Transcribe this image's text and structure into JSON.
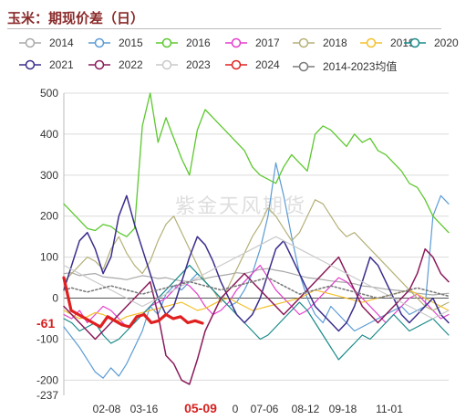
{
  "title": "玉米：期现价差（日）",
  "watermark": "紫金天风期货",
  "chart_data": {
    "type": "line",
    "ylim": [
      -237,
      500
    ],
    "y_ticks": [
      500,
      400,
      300,
      200,
      100,
      0,
      -100,
      -200,
      -237
    ],
    "x_tick_labels": [
      {
        "label": "02-08",
        "emph": false
      },
      {
        "label": "03-16",
        "emph": false
      },
      {
        "label": "05-09",
        "emph": true
      },
      {
        "label": "0",
        "emph": false
      },
      {
        "label": "07-06",
        "emph": false
      },
      {
        "label": "08-12",
        "emph": false
      },
      {
        "label": "09-18",
        "emph": false
      },
      {
        "label": "11-01",
        "emph": false
      }
    ],
    "current_value_label": "-61",
    "grid": true,
    "legend_position": "top",
    "series": [
      {
        "name": "2014",
        "color": "#a8a8a8",
        "width": 1.2,
        "dash": "",
        "values": [
          60,
          62,
          55,
          58,
          60,
          52,
          50,
          48,
          45,
          50,
          55,
          52,
          48,
          50,
          45,
          42,
          40,
          45,
          48,
          52,
          55,
          58,
          62,
          60,
          65,
          70,
          72,
          68,
          65,
          60,
          55,
          50,
          48,
          45,
          42,
          40,
          38,
          35,
          30,
          28,
          25,
          22,
          20,
          18,
          15,
          12,
          10,
          8,
          10,
          12
        ]
      },
      {
        "name": "2015",
        "color": "#5b9bd5",
        "width": 1.2,
        "dash": "",
        "values": [
          -70,
          -95,
          -120,
          -150,
          -180,
          -195,
          -170,
          -190,
          -160,
          -120,
          -80,
          -20,
          -40,
          10,
          30,
          20,
          40,
          60,
          40,
          20,
          0,
          -20,
          -10,
          20,
          60,
          120,
          200,
          330,
          250,
          150,
          60,
          0,
          -40,
          -60,
          -20,
          -40,
          -60,
          -80,
          -70,
          -60,
          -50,
          -40,
          -30,
          -20,
          -40,
          -30,
          -20,
          200,
          250,
          230
        ]
      },
      {
        "name": "2016",
        "color": "#5cc82e",
        "width": 1.3,
        "dash": "",
        "values": [
          230,
          210,
          190,
          170,
          165,
          180,
          175,
          160,
          150,
          170,
          420,
          500,
          380,
          440,
          390,
          340,
          300,
          410,
          460,
          440,
          420,
          400,
          380,
          360,
          320,
          300,
          290,
          280,
          320,
          350,
          330,
          310,
          400,
          420,
          410,
          390,
          370,
          400,
          380,
          390,
          360,
          350,
          330,
          310,
          280,
          270,
          240,
          200,
          180,
          160
        ]
      },
      {
        "name": "2017",
        "color": "#e33ecb",
        "width": 1.2,
        "dash": "",
        "values": [
          -40,
          -50,
          -30,
          -60,
          -40,
          -20,
          -30,
          -50,
          -70,
          -60,
          -40,
          -20,
          -10,
          0,
          20,
          40,
          30,
          10,
          -20,
          -40,
          -30,
          -10,
          20,
          40,
          60,
          80,
          50,
          20,
          0,
          -20,
          -40,
          -30,
          -10,
          10,
          30,
          50,
          40,
          20,
          0,
          -20,
          -40,
          -60,
          -40,
          -20,
          0,
          10,
          -10,
          -30,
          -50,
          -40
        ]
      },
      {
        "name": "2018",
        "color": "#b5b078",
        "width": 1.2,
        "dash": "",
        "values": [
          40,
          60,
          80,
          100,
          90,
          70,
          120,
          150,
          110,
          80,
          60,
          90,
          140,
          180,
          200,
          160,
          120,
          80,
          40,
          20,
          -10,
          30,
          70,
          110,
          150,
          180,
          220,
          200,
          170,
          140,
          160,
          200,
          240,
          230,
          200,
          170,
          150,
          160,
          140,
          120,
          100,
          80,
          60,
          40,
          20,
          0,
          -20,
          -30,
          -20,
          -10
        ]
      },
      {
        "name": "2019",
        "color": "#f3c02a",
        "width": 1.2,
        "dash": "",
        "values": [
          -30,
          -40,
          -50,
          -45,
          -35,
          -40,
          -50,
          -55,
          -45,
          -40,
          -35,
          -30,
          -25,
          -20,
          -15,
          -10,
          -20,
          -30,
          -25,
          -15,
          -5,
          0,
          -10,
          -20,
          -30,
          -25,
          -20,
          -15,
          -10,
          -5,
          0,
          10,
          20,
          15,
          10,
          5,
          0,
          -5,
          -10,
          -5,
          0,
          5,
          10,
          15,
          20,
          10,
          0,
          -10,
          -20,
          -30
        ]
      },
      {
        "name": "2020",
        "color": "#1a8a8a",
        "width": 1.2,
        "dash": "",
        "values": [
          -50,
          -60,
          -80,
          -70,
          -60,
          -90,
          -110,
          -100,
          -80,
          -60,
          -40,
          -20,
          0,
          20,
          40,
          60,
          80,
          60,
          40,
          20,
          0,
          -20,
          -40,
          -60,
          -80,
          -100,
          -90,
          -70,
          -50,
          -30,
          -10,
          -30,
          -60,
          -90,
          -120,
          -150,
          -130,
          -110,
          -90,
          -100,
          -80,
          -60,
          -40,
          -60,
          -80,
          -70,
          -60,
          -50,
          -70,
          -90
        ]
      },
      {
        "name": "2021",
        "color": "#3a2e8c",
        "width": 1.5,
        "dash": "",
        "values": [
          20,
          80,
          140,
          160,
          120,
          60,
          100,
          200,
          250,
          180,
          120,
          60,
          0,
          -40,
          -20,
          40,
          100,
          150,
          130,
          90,
          40,
          0,
          -40,
          -60,
          -40,
          0,
          60,
          120,
          140,
          100,
          60,
          20,
          -20,
          -40,
          -60,
          -80,
          -60,
          -20,
          40,
          100,
          80,
          40,
          0,
          -40,
          -60,
          -40,
          -20,
          0,
          -40,
          -60
        ]
      },
      {
        "name": "2022",
        "color": "#8a1a5a",
        "width": 1.5,
        "dash": "",
        "values": [
          -20,
          -40,
          -60,
          -80,
          -100,
          -80,
          -60,
          -40,
          -20,
          0,
          20,
          40,
          -40,
          -140,
          -160,
          -200,
          -210,
          -150,
          -80,
          -40,
          0,
          20,
          40,
          60,
          40,
          20,
          0,
          -20,
          -40,
          -20,
          0,
          20,
          40,
          60,
          80,
          100,
          60,
          20,
          -20,
          -40,
          -60,
          -40,
          -20,
          0,
          20,
          60,
          120,
          100,
          60,
          40
        ]
      },
      {
        "name": "2023",
        "color": "#c9c9c9",
        "width": 1.2,
        "dash": "",
        "values": [
          80,
          70,
          60,
          50,
          40,
          30,
          20,
          10,
          0,
          -10,
          -20,
          -10,
          0,
          10,
          20,
          30,
          40,
          50,
          60,
          70,
          80,
          90,
          100,
          110,
          120,
          130,
          140,
          150,
          140,
          130,
          120,
          110,
          100,
          90,
          80,
          70,
          60,
          50,
          40,
          30,
          20,
          10,
          0,
          -10,
          -20,
          -30,
          -40,
          -50,
          -40,
          -30
        ]
      },
      {
        "name": "2024",
        "color": "#e02020",
        "width": 3.2,
        "dash": "",
        "values": [
          50,
          -30,
          -40,
          -50,
          -60,
          -70,
          -45,
          -55,
          -65,
          -70,
          -45,
          -40,
          -60,
          -55,
          -40,
          -50,
          -45,
          -60,
          -55,
          -61
        ]
      },
      {
        "name": "2014-2023均值",
        "color": "#7a7a7a",
        "width": 1.6,
        "dash": "2,2.5",
        "values": [
          20,
          25,
          20,
          15,
          20,
          25,
          30,
          25,
          20,
          15,
          10,
          15,
          20,
          25,
          30,
          35,
          40,
          35,
          30,
          25,
          20,
          25,
          30,
          35,
          40,
          45,
          50,
          40,
          30,
          20,
          10,
          15,
          20,
          25,
          30,
          25,
          20,
          15,
          10,
          5,
          0,
          5,
          10,
          15,
          20,
          25,
          20,
          15,
          10,
          5
        ]
      }
    ]
  }
}
